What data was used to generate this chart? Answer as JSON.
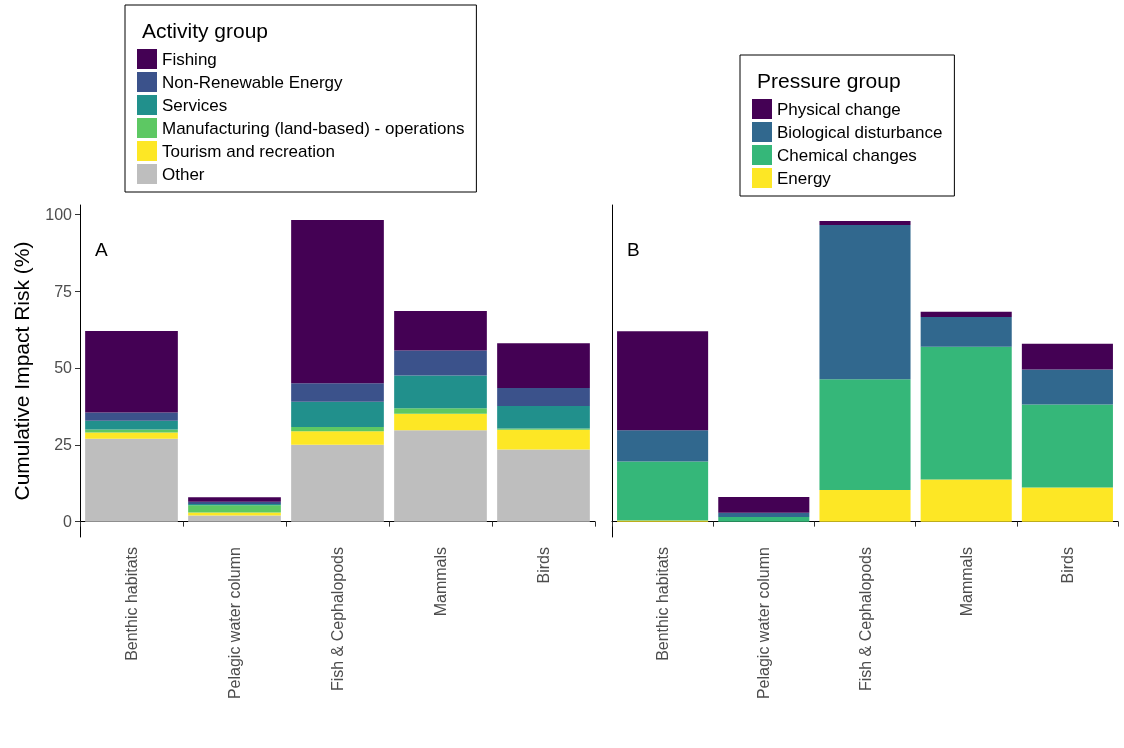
{
  "chart_data": [
    {
      "type": "bar",
      "stacked": true,
      "ylabel": "Cumulative Impact Risk (%)",
      "legend_title": "Activity group",
      "legend": "top left",
      "grid": false,
      "annotations": [
        "A"
      ],
      "categories": [
        "Benthic habitats",
        "Pelagic water column",
        "Fish & Cephalopods",
        "Mammals",
        "Birds"
      ],
      "ylim": [
        -5,
        103
      ],
      "yticks": [
        0,
        25,
        50,
        75,
        100
      ],
      "series": [
        {
          "name": "Other",
          "color": "#bebebe",
          "values": [
            27,
            2,
            25,
            29.7,
            23.5
          ]
        },
        {
          "name": "Tourism and recreation",
          "color": "#fde725",
          "values": [
            2,
            1,
            4.4,
            5.4,
            6.4
          ]
        },
        {
          "name": "Manufacturing (land-based) - operations",
          "color": "#5dc863",
          "values": [
            1,
            2.3,
            1.4,
            1.8,
            0.4
          ]
        },
        {
          "name": "Services",
          "color": "#21908c",
          "values": [
            2.8,
            0.4,
            8.2,
            10.6,
            7.3
          ]
        },
        {
          "name": "Non-Renewable Energy",
          "color": "#3b528b",
          "values": [
            2.7,
            0.8,
            6,
            8.2,
            5.9
          ]
        },
        {
          "name": "Fishing",
          "color": "#440154",
          "values": [
            26.5,
            1.4,
            53.1,
            12.8,
            14.5
          ]
        }
      ]
    },
    {
      "type": "bar",
      "stacked": true,
      "legend_title": "Pressure group",
      "legend": "top right",
      "grid": false,
      "annotations": [
        "B"
      ],
      "tick_labels": "x",
      "categories": [
        "Benthic habitats",
        "Pelagic water column",
        "Fish & Cephalopods",
        "Mammals",
        "Birds"
      ],
      "ylim": [
        -5,
        103
      ],
      "yticks": [
        0,
        25,
        50,
        75,
        100
      ],
      "series": [
        {
          "name": "Energy",
          "color": "#fde725",
          "values": [
            0.4,
            0,
            10.3,
            13.7,
            11.1
          ]
        },
        {
          "name": "Chemical changes",
          "color": "#35b779",
          "values": [
            19.2,
            1.5,
            36,
            43.2,
            27
          ]
        },
        {
          "name": "Biological disturbance",
          "color": "#31688e",
          "values": [
            10.1,
            1.4,
            50.2,
            9.7,
            11.4
          ]
        },
        {
          "name": "Physical change",
          "color": "#440154",
          "values": [
            32.2,
            5.1,
            1.3,
            1.7,
            8.4
          ]
        }
      ]
    }
  ]
}
